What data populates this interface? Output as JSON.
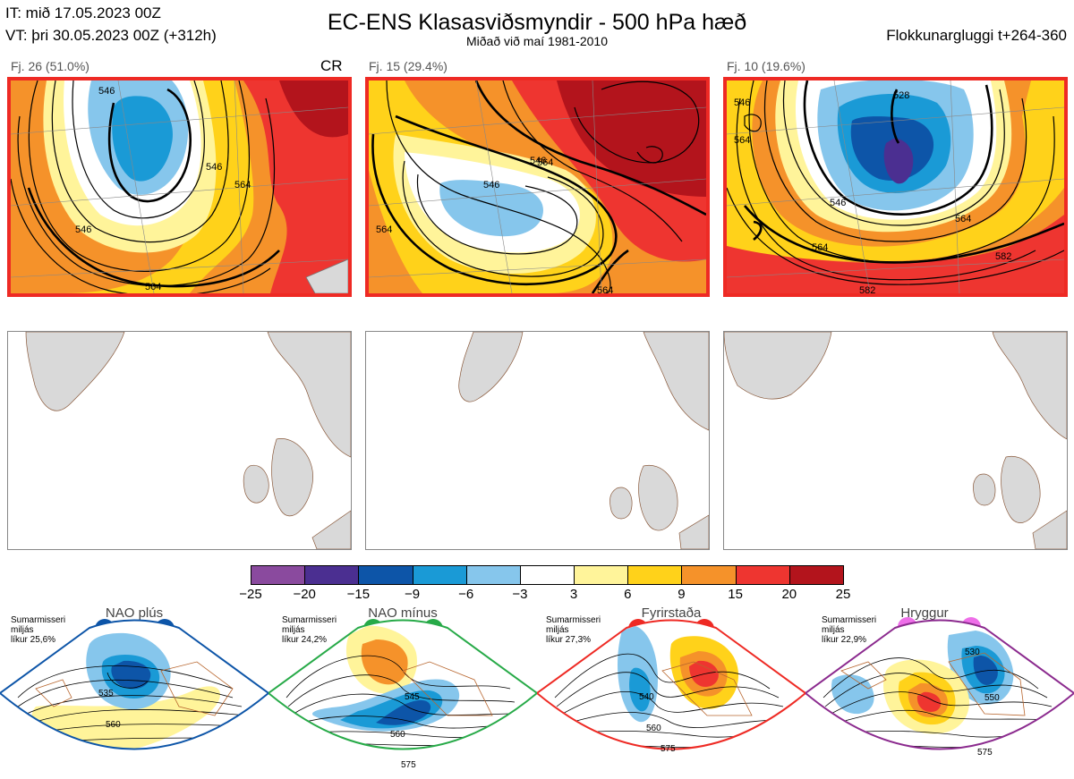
{
  "header": {
    "it_line": "IT: mið 17.05.2023 00Z",
    "vt_line": "VT: þri 30.05.2023 00Z  (+312h)",
    "title": "EC-ENS Klasasviðsmyndir - 500 hPa hæð",
    "subtitle": "Miðað við maí 1981-2010",
    "window": "Flokkunargluggi t+264-360"
  },
  "clusters": [
    {
      "label": "Fj. 26 (51.0%)",
      "tag": "CR",
      "contours": [
        "546",
        "546",
        "564",
        "546",
        "564"
      ]
    },
    {
      "label": "Fj. 15 (29.4%)",
      "tag": "",
      "contours": [
        "546",
        "564",
        "546",
        "564",
        "564"
      ]
    },
    {
      "label": "Fj. 10 (19.6%)",
      "tag": "",
      "contours": [
        "546",
        "528",
        "564",
        "546",
        "564",
        "564",
        "582",
        "582"
      ]
    }
  ],
  "colorbar": {
    "ticks": [
      "−25",
      "−20",
      "−15",
      "−9",
      "−6",
      "−3",
      "3",
      "6",
      "9",
      "15",
      "20",
      "25"
    ],
    "colors": [
      "#8a4a9e",
      "#4b2f91",
      "#0d55a8",
      "#1a9ad6",
      "#86c6ec",
      "#ffffff",
      "#fff49a",
      "#ffd21a",
      "#f5922a",
      "#ee3530",
      "#b3141c"
    ]
  },
  "regimes": [
    {
      "name": "NAO plús",
      "note": "Sumarmisseri\nmiljás\nlíkur 25,6%",
      "color": "#0d55a8",
      "contours": [
        "535",
        "560"
      ]
    },
    {
      "name": "NAO mínus",
      "note": "Sumarmisseri\nmiljás\nlíkur 24,2%",
      "color": "#27aa48",
      "contours": [
        "545",
        "560",
        "575"
      ]
    },
    {
      "name": "Fyrirstaða",
      "note": "Sumarmisseri\nmiljás\nlíkur 27,3%",
      "color": "#ee2a24",
      "contours": [
        "540",
        "560",
        "575"
      ]
    },
    {
      "name": "Hryggur",
      "note": "Sumarmisseri\nmiljás\nlíkur 22,9%",
      "color": "#ee6ee8",
      "contours": [
        "530",
        "550",
        "575"
      ]
    }
  ]
}
